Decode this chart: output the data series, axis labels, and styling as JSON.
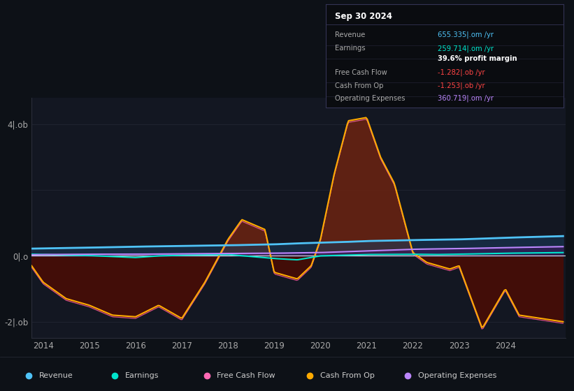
{
  "bg_color": "#0d1117",
  "chart_bg": "#131722",
  "ylim": [
    -2.5,
    4.8
  ],
  "xlim": [
    2013.75,
    2025.3
  ],
  "yticks": [
    -2,
    0,
    4
  ],
  "ytick_labels": [
    "-2|.ob",
    "0|.o",
    "4|.ob"
  ],
  "xticks": [
    2014,
    2015,
    2016,
    2017,
    2018,
    2019,
    2020,
    2021,
    2022,
    2023,
    2024
  ],
  "colors": {
    "revenue": "#4fc3f7",
    "earnings": "#00e5cc",
    "free_cash_flow": "#ff69b4",
    "cash_from_op": "#ffaa00",
    "operating_expenses": "#bb86fc",
    "zero_line": "#ffffff",
    "grid_line": "#2a2d3a",
    "cash_fill_pos": "#5a3800",
    "cash_fill_neg": "#3a1800",
    "fcf_fill_pos": "#6b1a1a",
    "fcf_fill_neg": "#4a0a0a",
    "revenue_fill": "#1a3a5c",
    "opex_fill": "#3a1a5c"
  },
  "info_box": {
    "title": "Sep 30 2024",
    "rows": [
      {
        "label": "Revenue",
        "value": "655.335|.om /yr",
        "color": "#4fc3f7"
      },
      {
        "label": "Earnings",
        "value": "259.714|.om /yr",
        "color": "#00e5cc"
      },
      {
        "label": "",
        "value": "39.6% profit margin",
        "color": "#ffffff"
      },
      {
        "label": "Free Cash Flow",
        "value": "-1.282|.ob /yr",
        "color": "#ff4444"
      },
      {
        "label": "Cash From Op",
        "value": "-1.253|.ob /yr",
        "color": "#ff4444"
      },
      {
        "label": "Operating Expenses",
        "value": "360.719|.om /yr",
        "color": "#bb86fc"
      }
    ]
  },
  "legend": [
    {
      "label": "Revenue",
      "color": "#4fc3f7"
    },
    {
      "label": "Earnings",
      "color": "#00e5cc"
    },
    {
      "label": "Free Cash Flow",
      "color": "#ff69b4"
    },
    {
      "label": "Cash From Op",
      "color": "#ffaa00"
    },
    {
      "label": "Operating Expenses",
      "color": "#bb86fc"
    }
  ]
}
